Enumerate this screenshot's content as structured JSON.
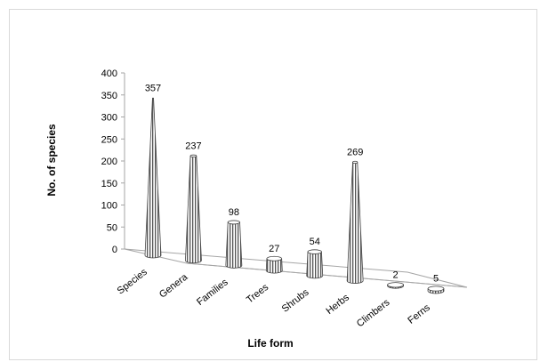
{
  "chart_data": {
    "type": "bar",
    "style": "3d-cone",
    "title": "",
    "xlabel": "Life form",
    "ylabel": "No. of species",
    "ylim": [
      0,
      400
    ],
    "yticks": [
      0,
      50,
      100,
      150,
      200,
      250,
      300,
      350,
      400
    ],
    "categories": [
      "Species",
      "Genera",
      "Families",
      "Trees",
      "Shrubs",
      "Herbs",
      "Climbers",
      "Ferns"
    ],
    "values": [
      357,
      237,
      98,
      27,
      54,
      269,
      2,
      5
    ],
    "grid": false,
    "legend": "none",
    "bar_color": "#ffffff",
    "stripe_color": "#555555"
  }
}
